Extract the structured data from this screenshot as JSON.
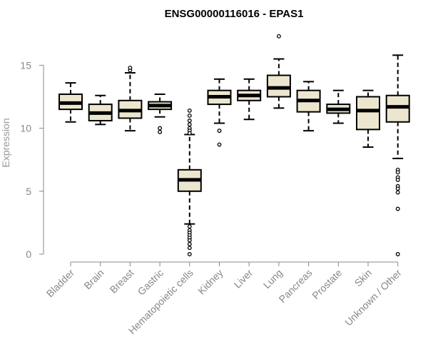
{
  "chart_data": {
    "type": "box",
    "title": "ENSG00000116016 - EPAS1",
    "ylabel": "Expression",
    "xlabel": "",
    "ylim": [
      0,
      17.8
    ],
    "yticks": [
      0,
      5,
      10,
      15
    ],
    "box_fill": "#ede6cf",
    "categories": [
      "Bladder",
      "Brain",
      "Breast",
      "Gastric",
      "Hematopoietic cells",
      "Kidney",
      "Liver",
      "Lung",
      "Pancreas",
      "Prostate",
      "Skin",
      "Unknown / Other"
    ],
    "boxes": [
      {
        "whisker_low": 10.5,
        "q1": 11.5,
        "median": 12.0,
        "q3": 12.7,
        "whisker_high": 13.6,
        "outliers": []
      },
      {
        "whisker_low": 10.3,
        "q1": 10.6,
        "median": 11.2,
        "q3": 11.9,
        "whisker_high": 12.6,
        "outliers": []
      },
      {
        "whisker_low": 9.8,
        "q1": 10.8,
        "median": 11.4,
        "q3": 12.2,
        "whisker_high": 14.4,
        "outliers": [
          14.6,
          14.8
        ]
      },
      {
        "whisker_low": 10.9,
        "q1": 11.5,
        "median": 11.8,
        "q3": 12.1,
        "whisker_high": 12.7,
        "outliers": [
          10.0,
          9.7
        ]
      },
      {
        "whisker_low": 2.4,
        "q1": 5.0,
        "median": 5.9,
        "q3": 6.7,
        "whisker_high": 9.5,
        "outliers": [
          11.4,
          11.0,
          10.6,
          10.3,
          10.0,
          9.8,
          9.6,
          2.2,
          1.9,
          1.7,
          1.5,
          1.3,
          1.1,
          0.8,
          0.5,
          0.0
        ]
      },
      {
        "whisker_low": 10.4,
        "q1": 11.9,
        "median": 12.5,
        "q3": 13.0,
        "whisker_high": 13.9,
        "outliers": [
          9.8,
          8.7
        ]
      },
      {
        "whisker_low": 10.7,
        "q1": 12.2,
        "median": 12.6,
        "q3": 13.0,
        "whisker_high": 13.9,
        "outliers": []
      },
      {
        "whisker_low": 11.6,
        "q1": 12.5,
        "median": 13.2,
        "q3": 14.2,
        "whisker_high": 15.5,
        "outliers": [
          17.3
        ]
      },
      {
        "whisker_low": 9.8,
        "q1": 11.3,
        "median": 12.2,
        "q3": 13.0,
        "whisker_high": 13.7,
        "outliers": []
      },
      {
        "whisker_low": 10.4,
        "q1": 11.2,
        "median": 11.5,
        "q3": 11.9,
        "whisker_high": 13.0,
        "outliers": []
      },
      {
        "whisker_low": 8.5,
        "q1": 9.9,
        "median": 11.4,
        "q3": 12.5,
        "whisker_high": 13.0,
        "outliers": []
      },
      {
        "whisker_low": 7.6,
        "q1": 10.5,
        "median": 11.7,
        "q3": 12.6,
        "whisker_high": 15.8,
        "outliers": [
          6.7,
          6.5,
          6.1,
          5.9,
          5.4,
          5.2,
          4.9,
          3.6,
          0.0
        ]
      }
    ]
  }
}
